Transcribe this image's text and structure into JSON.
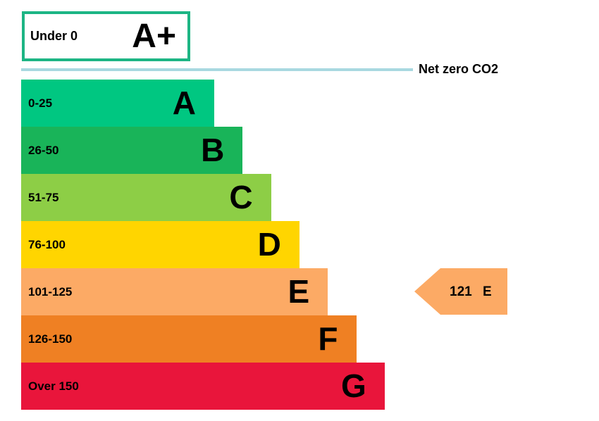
{
  "top": {
    "range": "Under 0",
    "rating": "A+",
    "color": "#1db584"
  },
  "net_zero": {
    "label": "Net zero CO2",
    "color": "#a8d8e0"
  },
  "bands": [
    {
      "range": "0-25",
      "rating": "A",
      "color": "#00c781"
    },
    {
      "range": "26-50",
      "rating": "B",
      "color": "#19b459"
    },
    {
      "range": "51-75",
      "rating": "C",
      "color": "#8dce46"
    },
    {
      "range": "76-100",
      "rating": "D",
      "color": "#ffd500"
    },
    {
      "range": "101-125",
      "rating": "E",
      "color": "#fcaa65"
    },
    {
      "range": "126-150",
      "rating": "F",
      "color": "#ef8023"
    },
    {
      "range": "Over 150",
      "rating": "G",
      "color": "#e9153b"
    }
  ],
  "current": {
    "score": "121",
    "rating": "E",
    "color": "#fcaa65"
  }
}
